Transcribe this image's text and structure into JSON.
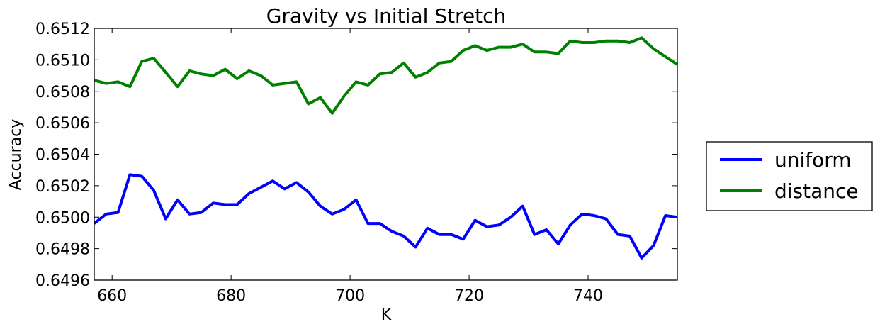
{
  "chart_data": {
    "type": "line",
    "title": "Gravity vs Initial Stretch",
    "xlabel": "K",
    "ylabel": "Accuracy",
    "xlim": [
      657,
      755
    ],
    "ylim": [
      0.6496,
      0.6512
    ],
    "xticks": [
      660,
      680,
      700,
      720,
      740
    ],
    "yticks": [
      0.6496,
      0.6498,
      0.65,
      0.6502,
      0.6504,
      0.6506,
      0.6508,
      0.651,
      0.6512
    ],
    "ytick_labels": [
      "0.6496",
      "0.6498",
      "0.6500",
      "0.6502",
      "0.6504",
      "0.6506",
      "0.6508",
      "0.6510",
      "0.6512"
    ],
    "grid": false,
    "legend_placement": "outside-right",
    "x": [
      657,
      659,
      661,
      663,
      665,
      667,
      669,
      671,
      673,
      675,
      677,
      679,
      681,
      683,
      685,
      687,
      689,
      691,
      693,
      695,
      697,
      699,
      701,
      703,
      705,
      707,
      709,
      711,
      713,
      715,
      717,
      719,
      721,
      723,
      725,
      727,
      729,
      731,
      733,
      735,
      737,
      739,
      741,
      743,
      745,
      747,
      749,
      751,
      753,
      755
    ],
    "series": [
      {
        "name": "uniform",
        "color": "#0000ff",
        "values": [
          0.64996,
          0.65002,
          0.65003,
          0.65027,
          0.65026,
          0.65017,
          0.64999,
          0.65011,
          0.65002,
          0.65003,
          0.65009,
          0.65008,
          0.65008,
          0.65015,
          0.65019,
          0.65023,
          0.65018,
          0.65022,
          0.65016,
          0.65007,
          0.65002,
          0.65005,
          0.65011,
          0.64996,
          0.64996,
          0.64991,
          0.64988,
          0.64981,
          0.64993,
          0.64989,
          0.64989,
          0.64986,
          0.64998,
          0.64994,
          0.64995,
          0.65,
          0.65007,
          0.64989,
          0.64992,
          0.64983,
          0.64995,
          0.65002,
          0.65001,
          0.64999,
          0.64989,
          0.64988,
          0.64974,
          0.64982,
          0.65001,
          0.65
        ]
      },
      {
        "name": "distance",
        "color": "#008000",
        "values": [
          0.65087,
          0.65085,
          0.65086,
          0.65083,
          0.65099,
          0.65101,
          0.65092,
          0.65083,
          0.65093,
          0.65091,
          0.6509,
          0.65094,
          0.65088,
          0.65093,
          0.6509,
          0.65084,
          0.65085,
          0.65086,
          0.65072,
          0.65076,
          0.65066,
          0.65077,
          0.65086,
          0.65084,
          0.65091,
          0.65092,
          0.65098,
          0.65089,
          0.65092,
          0.65098,
          0.65099,
          0.65106,
          0.65109,
          0.65106,
          0.65108,
          0.65108,
          0.6511,
          0.65105,
          0.65105,
          0.65104,
          0.65112,
          0.65111,
          0.65111,
          0.65112,
          0.65112,
          0.65111,
          0.65114,
          0.65107,
          0.65102,
          0.65097
        ]
      }
    ]
  }
}
